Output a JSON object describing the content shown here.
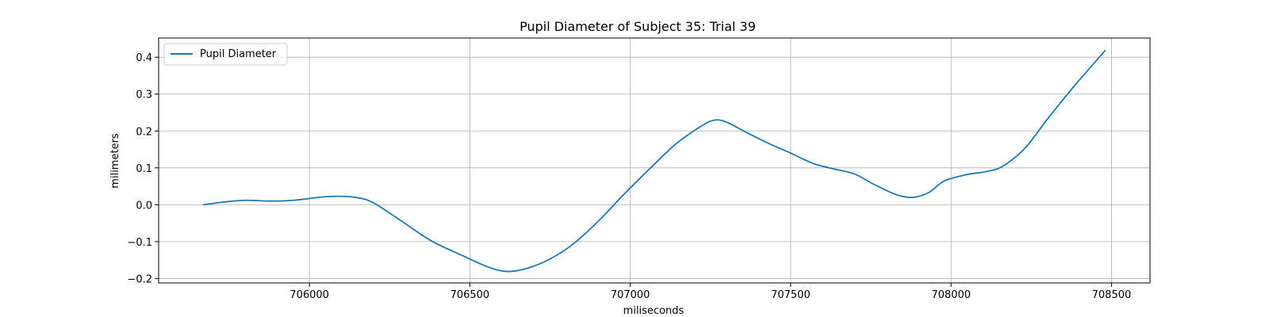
{
  "chart_data": {
    "type": "line",
    "title": "Pupil Diameter of Subject 35: Trial 39",
    "xlabel": "miliseconds",
    "ylabel": "milimeters",
    "xlim": [
      705530,
      708620
    ],
    "ylim": [
      -0.212,
      0.452
    ],
    "xticks": [
      706000,
      706500,
      707000,
      707500,
      708000,
      708500
    ],
    "xtick_labels": [
      "706000",
      "706500",
      "707000",
      "707500",
      "708000",
      "708500"
    ],
    "yticks": [
      -0.2,
      -0.1,
      0.0,
      0.1,
      0.2,
      0.3,
      0.4
    ],
    "ytick_labels": [
      "−0.2",
      "−0.1",
      "0.0",
      "0.1",
      "0.2",
      "0.3",
      "0.4"
    ],
    "grid": true,
    "legend_position": "upper-left",
    "series": [
      {
        "name": "Pupil Diameter",
        "color": "#1f77b4",
        "x": [
          705670,
          705730,
          705800,
          705880,
          705950,
          706030,
          706090,
          706150,
          706200,
          706280,
          706380,
          706470,
          706560,
          706620,
          706680,
          706750,
          706820,
          706900,
          706980,
          707060,
          707140,
          707210,
          707260,
          707300,
          707360,
          707430,
          707500,
          707570,
          707630,
          707700,
          707760,
          707830,
          707880,
          707930,
          707980,
          708050,
          708110,
          708160,
          708230,
          708300,
          708380,
          708480
        ],
        "y": [
          0.0,
          0.007,
          0.012,
          0.01,
          0.012,
          0.02,
          0.023,
          0.019,
          0.005,
          -0.04,
          -0.098,
          -0.135,
          -0.17,
          -0.181,
          -0.172,
          -0.147,
          -0.108,
          -0.045,
          0.028,
          0.097,
          0.163,
          0.207,
          0.229,
          0.224,
          0.197,
          0.167,
          0.14,
          0.112,
          0.098,
          0.083,
          0.055,
          0.027,
          0.02,
          0.033,
          0.065,
          0.082,
          0.09,
          0.104,
          0.153,
          0.232,
          0.318,
          0.418
        ]
      }
    ]
  }
}
